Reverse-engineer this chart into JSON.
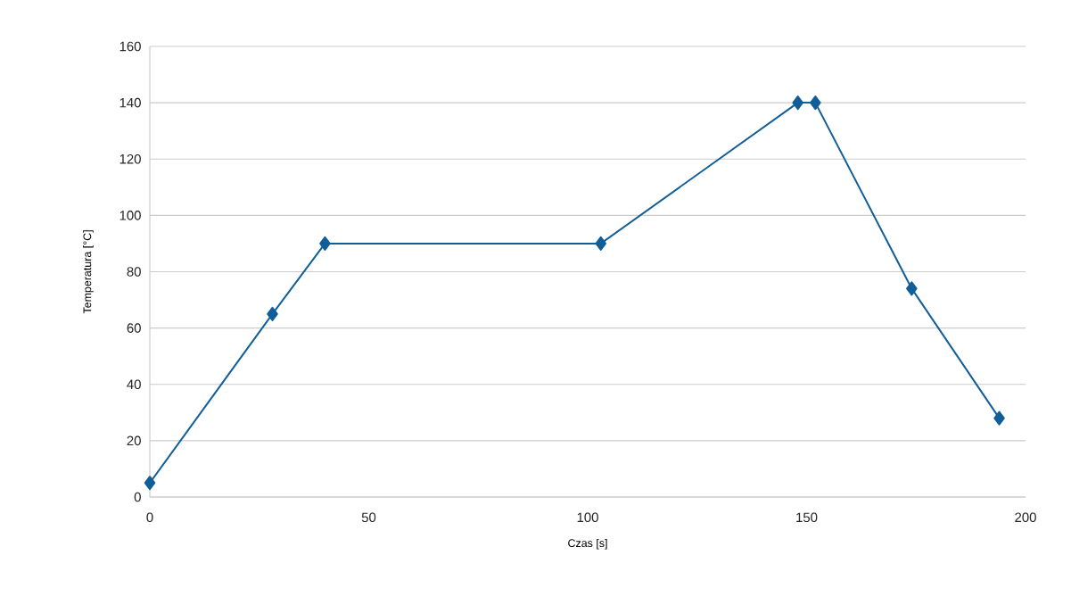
{
  "chart_data": {
    "type": "line",
    "xlabel": "Czas [s]",
    "ylabel": "Temperatura [°C]",
    "x": [
      0,
      28,
      40,
      103,
      148,
      152,
      174,
      194
    ],
    "series": [
      {
        "color": "#115e99",
        "values": [
          5,
          65,
          90,
          90,
          140,
          140,
          74,
          28
        ]
      }
    ],
    "xlim": [
      0,
      200
    ],
    "xticks": [
      0,
      50,
      100,
      150,
      200
    ],
    "ylim": [
      0,
      160
    ],
    "yticks": [
      0,
      20,
      40,
      60,
      80,
      100,
      120,
      140,
      160
    ],
    "grid": "y",
    "marker": "diamond",
    "line_style": "solid"
  }
}
